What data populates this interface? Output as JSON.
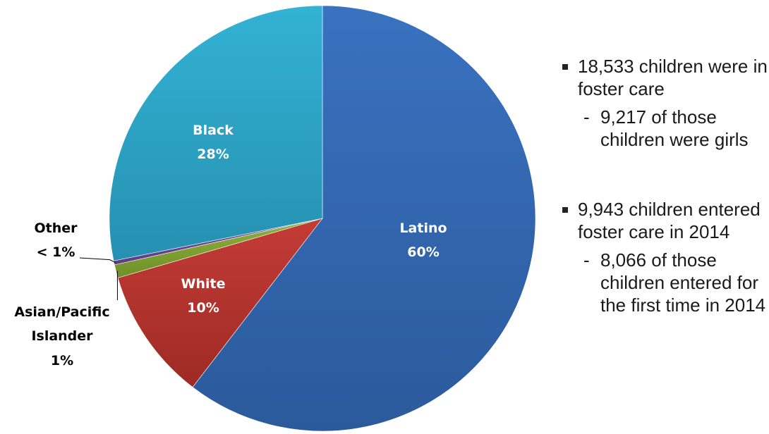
{
  "chart_data": {
    "type": "pie",
    "title": "",
    "slices": [
      {
        "name": "Latino",
        "value": 60,
        "label": "60%",
        "color": "#3a72c0",
        "color_dark": "#2b5a9c"
      },
      {
        "name": "White",
        "value": 10,
        "label": "10%",
        "color": "#c43c36",
        "color_dark": "#9e2a25"
      },
      {
        "name": "Asian/Pacific Islander",
        "value": 1,
        "label": "1%",
        "color": "#8fb23d",
        "color_dark": "#6f9028"
      },
      {
        "name": "Other",
        "value": 0.3,
        "label": "< 1%",
        "color": "#7a52a3",
        "color_dark": "#5e3c84"
      },
      {
        "name": "Black",
        "value": 28,
        "label": "28%",
        "color": "#33b2d4",
        "color_dark": "#2690b0"
      }
    ]
  },
  "notes": [
    {
      "text": "18,533 children were in foster care",
      "sub": "9,217 of those children were girls"
    },
    {
      "text": "9,943 children entered foster care in 2014",
      "sub": "8,066 of those children entered for the first time in 2014"
    }
  ]
}
